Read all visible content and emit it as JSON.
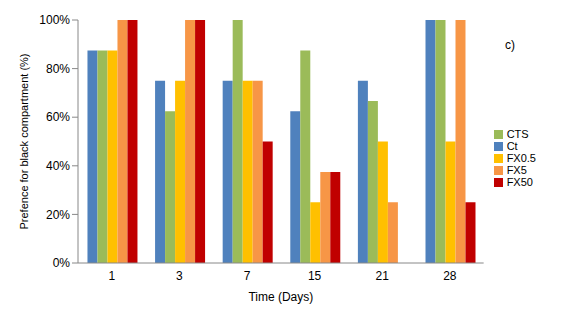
{
  "chart_data": {
    "type": "bar",
    "annotation": "c)",
    "x_label": "Time (Days)",
    "y_label": "Prefence for black compartment  (%)",
    "categories": [
      "1",
      "3",
      "7",
      "15",
      "21",
      "28"
    ],
    "series": [
      {
        "name": "Ct",
        "color": "#4f81bd",
        "values": [
          87.5,
          75,
          75,
          62.5,
          75,
          100
        ]
      },
      {
        "name": "CTS",
        "color": "#9bbb59",
        "values": [
          87.5,
          62.5,
          100,
          87.5,
          66.7,
          100
        ]
      },
      {
        "name": "FX0.5",
        "color": "#ffc000",
        "values": [
          87.5,
          75,
          75,
          25,
          50,
          50
        ]
      },
      {
        "name": "FX5",
        "color": "#f79646",
        "values": [
          100,
          100,
          75,
          37.5,
          25,
          100
        ]
      },
      {
        "name": "FX50",
        "color": "#c00000",
        "values": [
          100,
          100,
          50,
          37.5,
          null,
          25
        ]
      }
    ],
    "ylim": [
      0,
      100
    ],
    "yticks": [
      {
        "value": 0,
        "label": "0%"
      },
      {
        "value": 20,
        "label": "20%"
      },
      {
        "value": 40,
        "label": "40%"
      },
      {
        "value": 60,
        "label": "60%"
      },
      {
        "value": 80,
        "label": "80%"
      },
      {
        "value": 100,
        "label": "100%"
      }
    ],
    "grid": false,
    "legend": "right"
  }
}
